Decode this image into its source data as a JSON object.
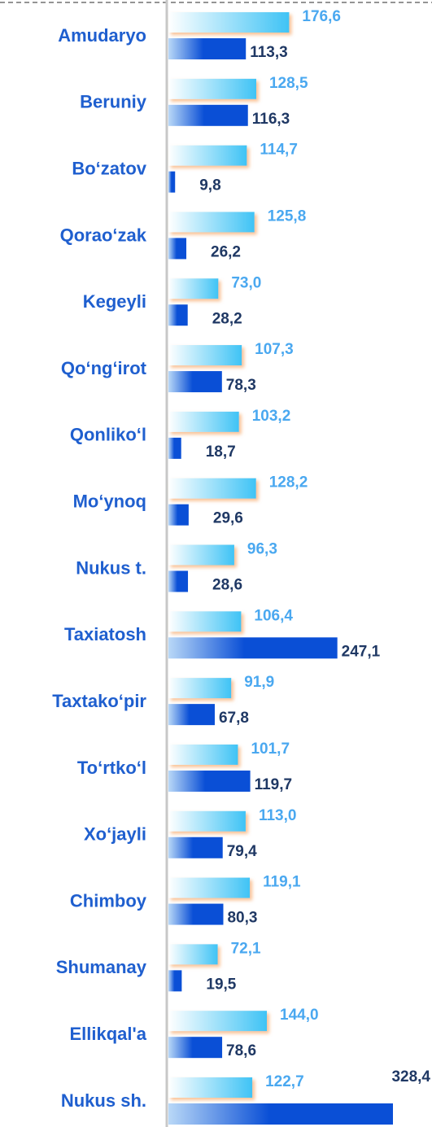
{
  "chart_data": {
    "type": "bar",
    "orientation": "horizontal",
    "categories": [
      "Amudaryo",
      "Beruniy",
      "Bo‘zatov",
      "Qorao‘zak",
      "Kegeyli",
      "Qo‘ng‘irot",
      "Qonliko‘l",
      "Mo‘ynoq",
      "Nukus t.",
      "Taxiatosh",
      "Taxtako‘pir",
      "To‘rtko‘l",
      "Xo‘jayli",
      "Chimboy",
      "Shumanay",
      "Ellikqal'a",
      "Nukus sh."
    ],
    "series": [
      {
        "color": "#3fc3f5",
        "values": [
          176.6,
          128.5,
          114.7,
          125.8,
          73.0,
          107.3,
          103.2,
          128.2,
          96.3,
          106.4,
          91.9,
          101.7,
          113.0,
          119.1,
          72.1,
          144.0,
          122.7
        ],
        "value_labels": [
          "176,6",
          "128,5",
          "114,7",
          "125,8",
          "73,0",
          "107,3",
          "103,2",
          "128,2",
          "96,3",
          "106,4",
          "91,9",
          "101,7",
          "113,0",
          "119,1",
          "72,1",
          "144,0",
          "122,7"
        ]
      },
      {
        "color": "#0a4fd6",
        "values": [
          113.3,
          116.3,
          9.8,
          26.2,
          28.2,
          78.3,
          18.7,
          29.6,
          28.6,
          247.1,
          67.8,
          119.7,
          79.4,
          80.3,
          19.5,
          78.6,
          328.4
        ],
        "value_labels": [
          "113,3",
          "116,3",
          "9,8",
          "26,2",
          "28,2",
          "78,3",
          "18,7",
          "29,6",
          "28,6",
          "247,1",
          "67,8",
          "119,7",
          "79,4",
          "80,3",
          "19,5",
          "78,6",
          "328,4"
        ]
      }
    ]
  }
}
